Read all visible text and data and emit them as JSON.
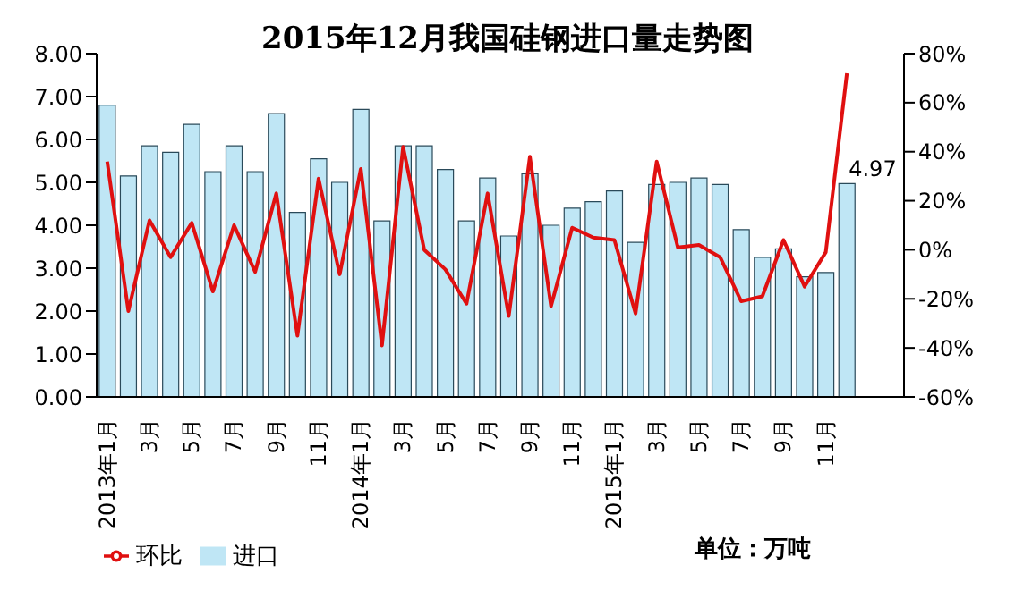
{
  "chart_data": {
    "type": "bar",
    "title": "2015年12月我国硅钢进口量走势图",
    "categories": [
      "2013年1月",
      null,
      "3月",
      null,
      "5月",
      null,
      "7月",
      null,
      "9月",
      null,
      "11月",
      null,
      "2014年1月",
      null,
      "3月",
      null,
      "5月",
      null,
      "7月",
      null,
      "9月",
      null,
      "11月",
      null,
      "2015年1月",
      null,
      "3月",
      null,
      "5月",
      null,
      "7月",
      null,
      "9月",
      null,
      "11月",
      null
    ],
    "series": [
      {
        "name": "进口",
        "color": "#bfe6f5",
        "values": [
          6.8,
          5.15,
          5.85,
          5.7,
          6.35,
          5.25,
          5.85,
          5.25,
          6.6,
          4.3,
          5.55,
          5.0,
          6.7,
          4.1,
          5.85,
          5.85,
          5.3,
          4.1,
          5.1,
          3.75,
          5.2,
          4.0,
          4.4,
          4.55,
          4.8,
          3.6,
          4.95,
          5.0,
          5.1,
          4.95,
          3.9,
          3.25,
          3.45,
          2.8,
          2.9,
          4.97
        ],
        "value_labels": [
          null,
          null,
          null,
          null,
          null,
          null,
          null,
          null,
          null,
          null,
          null,
          null,
          null,
          null,
          null,
          null,
          null,
          null,
          null,
          null,
          null,
          null,
          null,
          null,
          null,
          null,
          null,
          null,
          null,
          null,
          null,
          null,
          null,
          null,
          null,
          "4.97"
        ]
      },
      {
        "name": "环比",
        "type": "line",
        "axis": "y2",
        "color": "#e01010",
        "values": [
          36,
          -25,
          12,
          -3,
          11,
          -17,
          10,
          -9,
          23,
          -35,
          29,
          -10,
          33,
          -39,
          42,
          0,
          -8,
          -22,
          23,
          -27,
          38,
          -23,
          9,
          5,
          4,
          -26,
          36,
          1,
          2,
          -3,
          -21,
          -19,
          4,
          -15,
          -1,
          72
        ]
      }
    ],
    "ylim": [
      0,
      8
    ],
    "yticks": [
      {
        "value": 0,
        "label": "0.00"
      },
      {
        "value": 1,
        "label": "1.00"
      },
      {
        "value": 2,
        "label": "2.00"
      },
      {
        "value": 3,
        "label": "3.00"
      },
      {
        "value": 4,
        "label": "4.00"
      },
      {
        "value": 5,
        "label": "5.00"
      },
      {
        "value": 6,
        "label": "6.00"
      },
      {
        "value": 7,
        "label": "7.00"
      },
      {
        "value": 8,
        "label": "8.00"
      }
    ],
    "y2lim": [
      -60,
      80
    ],
    "y2ticks": [
      {
        "value": -60,
        "label": "-60%"
      },
      {
        "value": -40,
        "label": "-40%"
      },
      {
        "value": -20,
        "label": "-20%"
      },
      {
        "value": 0,
        "label": "0%"
      },
      {
        "value": 20,
        "label": "20%"
      },
      {
        "value": 40,
        "label": "40%"
      },
      {
        "value": 60,
        "label": "60%"
      },
      {
        "value": 80,
        "label": "80%"
      }
    ],
    "legend": "bottom left",
    "marker": "none",
    "annotations": [
      "单位：万吨"
    ]
  }
}
